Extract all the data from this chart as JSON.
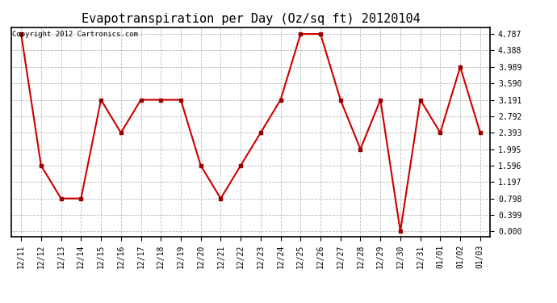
{
  "title": "Evapotranspiration per Day (Oz/sq ft) 20120104",
  "copyright_text": "Copyright 2012 Cartronics.com",
  "x_labels": [
    "12/11",
    "12/12",
    "12/13",
    "12/14",
    "12/15",
    "12/16",
    "12/17",
    "12/18",
    "12/19",
    "12/20",
    "12/21",
    "12/22",
    "12/23",
    "12/24",
    "12/25",
    "12/26",
    "12/27",
    "12/28",
    "12/29",
    "12/30",
    "12/31",
    "01/01",
    "01/02",
    "01/03"
  ],
  "y_values": [
    4.787,
    1.596,
    0.798,
    0.798,
    3.191,
    2.393,
    3.191,
    3.191,
    3.191,
    1.596,
    0.798,
    1.596,
    2.393,
    3.191,
    4.787,
    4.787,
    3.191,
    1.995,
    3.191,
    0.0,
    3.191,
    2.393,
    3.989,
    2.393
  ],
  "line_color": "#cc0000",
  "marker_color": "#990000",
  "background_color": "#ffffff",
  "grid_color": "#bbbbbb",
  "yticks": [
    0.0,
    0.399,
    0.798,
    1.197,
    1.596,
    1.995,
    2.393,
    2.792,
    3.191,
    3.59,
    3.989,
    4.388,
    4.787
  ],
  "ylim_min": -0.12,
  "ylim_max": 4.95,
  "title_fontsize": 11,
  "tick_fontsize": 7,
  "copyright_fontsize": 6.5,
  "linewidth": 1.5,
  "marker_size": 3.5
}
